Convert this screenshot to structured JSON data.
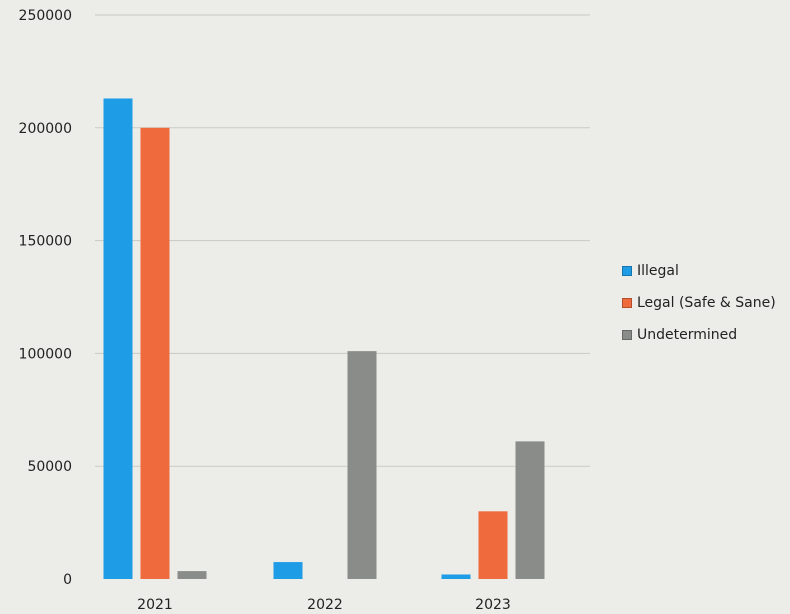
{
  "chart_data": {
    "type": "bar",
    "title": "",
    "xlabel": "",
    "ylabel": "",
    "categories": [
      "2021",
      "2022",
      "2023"
    ],
    "series": [
      {
        "name": "Illegal",
        "color": "#1e9ce6",
        "values": [
          213000,
          7500,
          2000
        ]
      },
      {
        "name": "Legal (Safe & Sane)",
        "color": "#ef6a3c",
        "values": [
          200000,
          0,
          30000
        ]
      },
      {
        "name": "Undetermined",
        "color": "#8a8c89",
        "values": [
          3500,
          101000,
          61000
        ]
      }
    ],
    "ylim": [
      0,
      250000
    ],
    "yticks": [
      "0",
      "50000",
      "100000",
      "150000",
      "200000",
      "250000"
    ],
    "grid": true,
    "legend_position": "right"
  }
}
